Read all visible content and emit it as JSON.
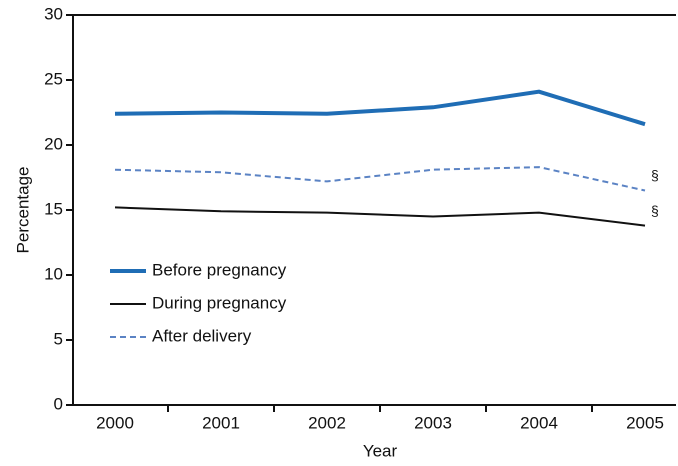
{
  "chart_data": {
    "type": "line",
    "x_label": "Year",
    "y_label": "Percentage",
    "categories": [
      "2000",
      "2001",
      "2002",
      "2003",
      "2004",
      "2005"
    ],
    "series": [
      {
        "name": "Before pregnancy",
        "color": "#1f6db5",
        "style": "solid",
        "width": 4,
        "values": [
          22.4,
          22.5,
          22.4,
          22.9,
          24.1,
          21.6
        ]
      },
      {
        "name": "During pregnancy",
        "color": "#111111",
        "style": "solid",
        "width": 2,
        "values": [
          15.2,
          14.9,
          14.8,
          14.5,
          14.8,
          13.8
        ]
      },
      {
        "name": "After delivery",
        "color": "#5b83c4",
        "style": "dashed",
        "width": 2,
        "values": [
          18.1,
          17.9,
          17.2,
          18.1,
          18.3,
          16.5
        ]
      }
    ],
    "annotations": [
      "§",
      "§"
    ],
    "ylim": [
      0,
      30
    ],
    "yticks": [
      0,
      5,
      10,
      15,
      20,
      25,
      30
    ],
    "legend": "lower left",
    "grid": false
  }
}
